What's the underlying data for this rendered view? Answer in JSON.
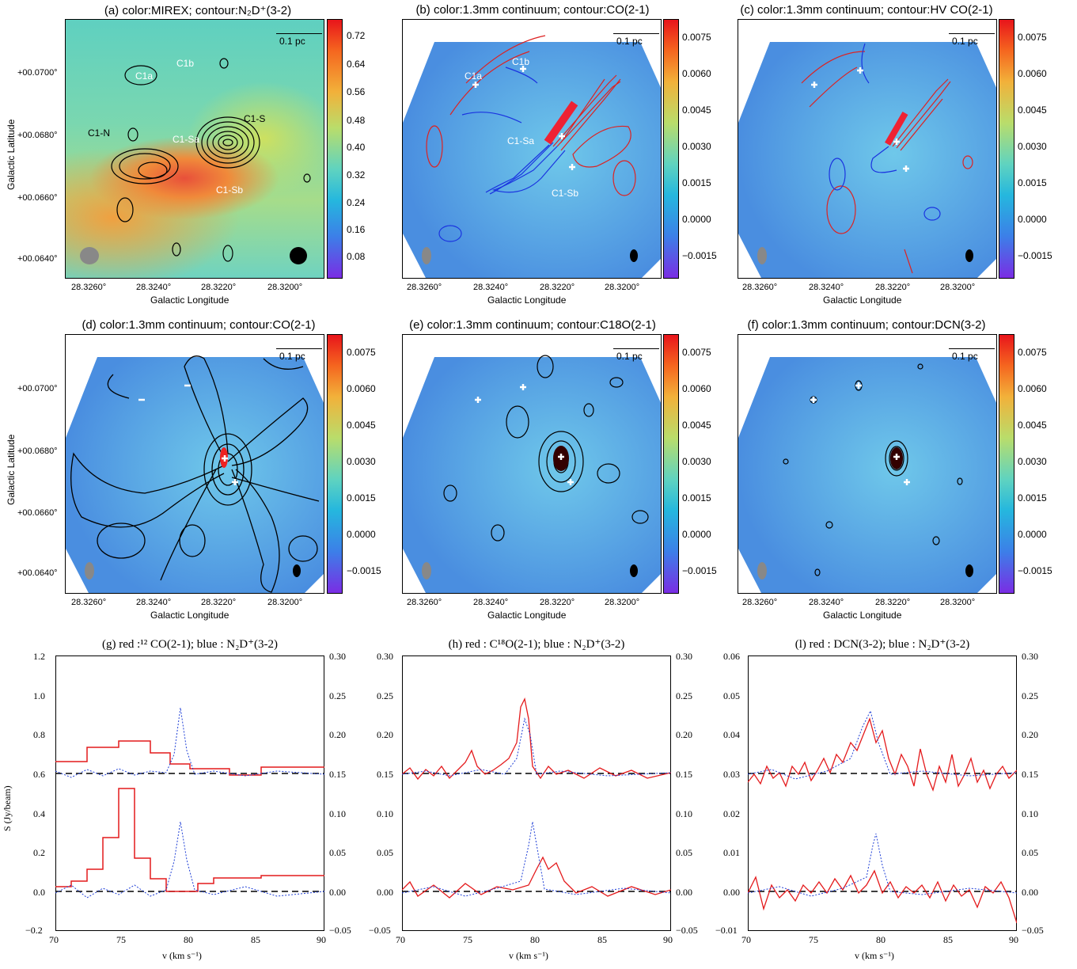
{
  "panels": {
    "a": {
      "title": "(a) color:MIREX; contour:N₂D⁺(3-2)",
      "cbar": [
        "0.72",
        "0.64",
        "0.56",
        "0.48",
        "0.40",
        "0.32",
        "0.24",
        "0.16",
        "0.08"
      ],
      "labels": {
        "c1a": "C1a",
        "c1b": "C1b",
        "c1n": "C1-N",
        "c1s": "C1-S",
        "c1sa": "C1-Sa",
        "c1sb": "C1-Sb"
      }
    },
    "b": {
      "title": "(b) color:1.3mm continuum; contour:CO(2-1)",
      "labels": {
        "c1a": "C1a",
        "c1b": "C1b",
        "c1sa": "C1-Sa",
        "c1sb": "C1-Sb"
      }
    },
    "c": {
      "title": "(c) color:1.3mm continuum; contour:HV CO(2-1)"
    },
    "d": {
      "title": "(d) color:1.3mm continuum; contour:CO(2-1)"
    },
    "e": {
      "title": "(e) color:1.3mm continuum; contour:C18O(2-1)"
    },
    "f": {
      "title": "(f) color:1.3mm continuum; contour:DCN(3-2)"
    },
    "cont_cbar": [
      "0.0075",
      "0.0060",
      "0.0045",
      "0.0030",
      "0.0015",
      "0.0000",
      "−0.0015"
    ],
    "scalebar": "0.1 pc",
    "xticks": [
      "28.3260°",
      "28.3240°",
      "28.3220°",
      "28.3200°"
    ],
    "yticks": [
      "+00.0700°",
      "+00.0680°",
      "+00.0660°",
      "+00.0640°"
    ],
    "xlabel": "Galactic Longitude",
    "ylabel": "Galactic Latitude"
  },
  "spectra": {
    "ylabel": "S (Jy/beam)",
    "xlabel": "v (km s⁻¹)",
    "xticks": [
      "70",
      "75",
      "80",
      "85",
      "90"
    ],
    "g": {
      "title": "(g) red :¹² CO(2-1); blue : N₂D⁺(3-2)",
      "left": [
        "1.2",
        "1.0",
        "0.8",
        "0.6",
        "0.4",
        "0.2",
        "0.0",
        "−0.2"
      ],
      "right": [
        "0.30",
        "0.25",
        "0.20",
        "0.15",
        "0.10",
        "0.05",
        "0.00",
        "−0.05"
      ]
    },
    "h": {
      "title": "(h) red : C¹⁸O(2-1); blue : N₂D⁺(3-2)",
      "left": [
        "0.30",
        "0.25",
        "0.20",
        "0.15",
        "0.10",
        "0.05",
        "0.00",
        "−0.05"
      ],
      "right": [
        "0.30",
        "0.25",
        "0.20",
        "0.15",
        "0.10",
        "0.05",
        "0.00",
        "−0.05"
      ]
    },
    "l": {
      "title": "(l) red : DCN(3-2); blue : N₂D⁺(3-2)",
      "left": [
        "0.06",
        "0.05",
        "0.04",
        "0.03",
        "0.02",
        "0.01",
        "0.00",
        "−0.01"
      ],
      "right": [
        "0.30",
        "0.25",
        "0.20",
        "0.15",
        "0.10",
        "0.05",
        "0.00",
        "−0.05"
      ]
    }
  },
  "colors": {
    "red": "#e41a1c",
    "blue": "#1f3fd6",
    "black": "#000000"
  }
}
